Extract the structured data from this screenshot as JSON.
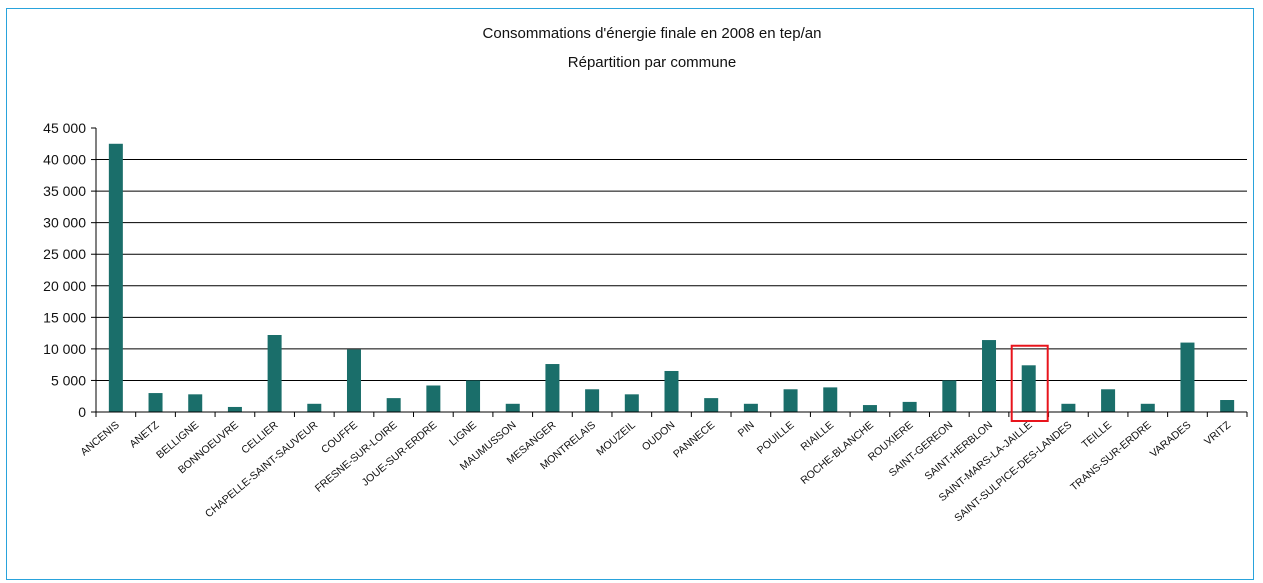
{
  "chart_data": {
    "type": "bar",
    "title": "Consommations d'énergie finale en 2008 en tep/an",
    "subtitle": "Répartition par commune",
    "xlabel": "",
    "ylabel": "",
    "ylim": [
      0,
      45000
    ],
    "yticks": [
      "0",
      "5 000",
      "10 000",
      "15 000",
      "20 000",
      "25 000",
      "30 000",
      "35 000",
      "40 000",
      "45 000"
    ],
    "grid": true,
    "bar_color": "#1a6e6a",
    "highlight_color": "#e8141c",
    "highlighted_category": "SAINT-MARS-LA-JAILLE",
    "categories": [
      "ANCENIS",
      "ANETZ",
      "BELLIGNE",
      "BONNOEUVRE",
      "CELLIER",
      "CHAPELLE-SAINT-SAUVEUR",
      "COUFFE",
      "FRESNE-SUR-LOIRE",
      "JOUE-SUR-ERDRE",
      "LIGNE",
      "MAUMUSSON",
      "MESANGER",
      "MONTRELAIS",
      "MOUZEIL",
      "OUDON",
      "PANNECE",
      "PIN",
      "POUILLE",
      "RIAILLE",
      "ROCHE-BLANCHE",
      "ROUXIERE",
      "SAINT-GEREON",
      "SAINT-HERBLON",
      "SAINT-MARS-LA-JAILLE",
      "SAINT-SULPICE-DES-LANDES",
      "TEILLE",
      "TRANS-SUR-ERDRE",
      "VARADES",
      "VRITZ"
    ],
    "values": [
      42500,
      3000,
      2800,
      800,
      12200,
      1300,
      9900,
      2200,
      4200,
      5000,
      1300,
      7600,
      3600,
      2800,
      6500,
      2200,
      1300,
      3600,
      3900,
      1100,
      1600,
      5000,
      11400,
      7400,
      1300,
      3600,
      1300,
      11000,
      1900
    ]
  }
}
